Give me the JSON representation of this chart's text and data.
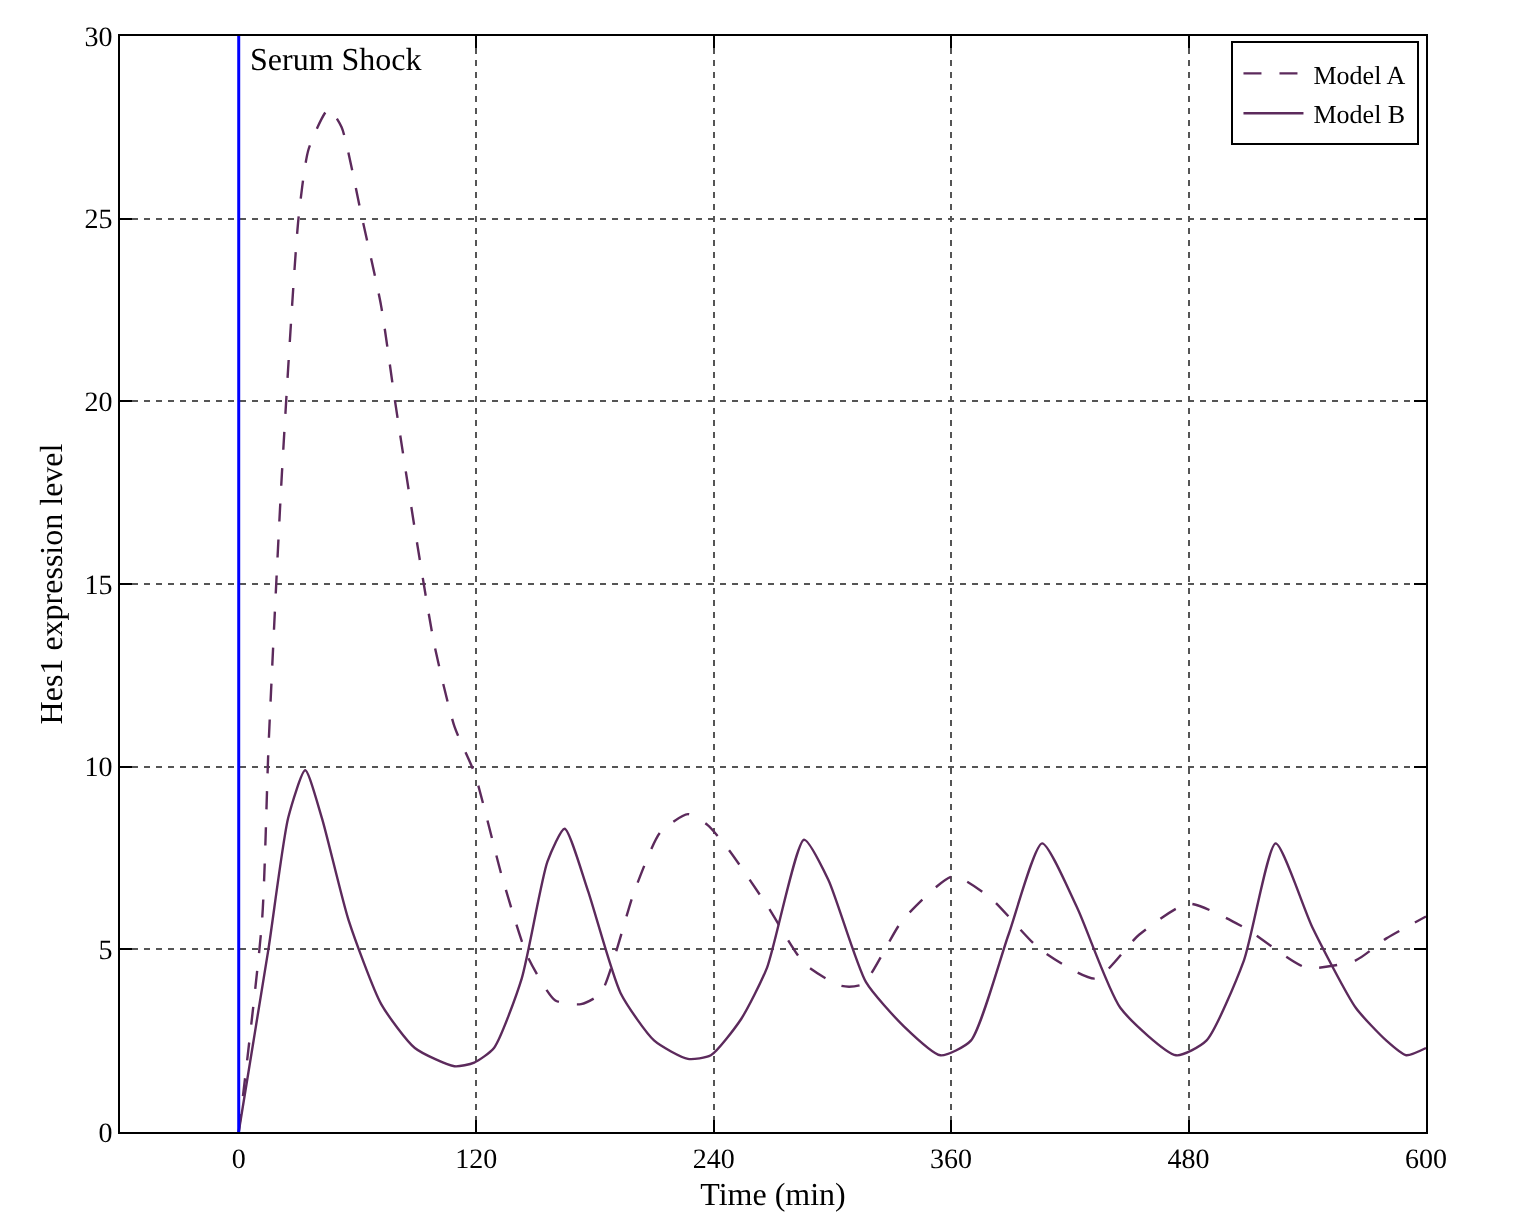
{
  "chart_data": {
    "type": "line",
    "xlabel": "Time (min)",
    "ylabel": "Hes1 expression level",
    "xlim": [
      -60,
      600
    ],
    "ylim": [
      0,
      30
    ],
    "xticks": [
      0,
      120,
      240,
      360,
      480,
      600
    ],
    "yticks": [
      0,
      5,
      10,
      15,
      20,
      25,
      30
    ],
    "grid": true,
    "legend": "top right",
    "ref_lines": [
      {
        "axis": "x",
        "value": 0,
        "label": "Serum Shock",
        "color": "#0000ff"
      }
    ],
    "series": [
      {
        "name": "Model A",
        "color": "#5c2a5c",
        "line_style": "dashed",
        "x": [
          0,
          11.8,
          15.1,
          21.8,
          30.2,
          35.3,
          45.4,
          52,
          62,
          72,
          79,
          89,
          99,
          109,
          119.3,
          133,
          146,
          160,
          173,
          183,
          200,
          213,
          227,
          237,
          248,
          267,
          286,
          304.5,
          315.5,
          335.5,
          361,
          380,
          405,
          433,
          455,
          480,
          508,
          539.5,
          564.5,
          580,
          600
        ],
        "values": [
          0,
          5.8,
          10.6,
          18.0,
          25.0,
          26.9,
          28.0,
          27.5,
          25.1,
          22.6,
          20.0,
          16.5,
          13.3,
          11.1,
          9.8,
          7.0,
          4.8,
          3.6,
          3.5,
          3.8,
          6.6,
          8.2,
          8.7,
          8.4,
          7.7,
          6.2,
          4.6,
          4.0,
          4.05,
          5.8,
          7.0,
          6.4,
          5.0,
          4.2,
          5.4,
          6.25,
          5.6,
          4.5,
          4.7,
          5.3,
          5.9
        ]
      },
      {
        "name": "Model B",
        "color": "#5c2a5c",
        "line_style": "solid",
        "x": [
          0,
          15,
          25,
          33.6,
          42,
          55.5,
          72,
          89,
          109,
          119,
          129,
          143,
          156,
          164.7,
          176.5,
          193,
          210,
          227,
          238.6,
          254,
          267,
          285.7,
          298,
          317,
          336,
          354.6,
          370,
          389,
          406,
          423.6,
          445.5,
          473.7,
          489,
          508,
          524,
          542.6,
          564.5,
          580,
          590,
          600
        ],
        "values": [
          0,
          5.0,
          8.6,
          9.9,
          8.6,
          5.8,
          3.5,
          2.3,
          1.8,
          1.9,
          2.3,
          4.2,
          7.4,
          8.3,
          6.6,
          3.8,
          2.5,
          2.0,
          2.1,
          3.1,
          4.5,
          8.0,
          6.9,
          4.1,
          2.9,
          2.1,
          2.5,
          5.4,
          7.9,
          6.15,
          3.4,
          2.1,
          2.5,
          4.7,
          7.9,
          5.6,
          3.4,
          2.5,
          2.1,
          2.3
        ]
      }
    ]
  }
}
